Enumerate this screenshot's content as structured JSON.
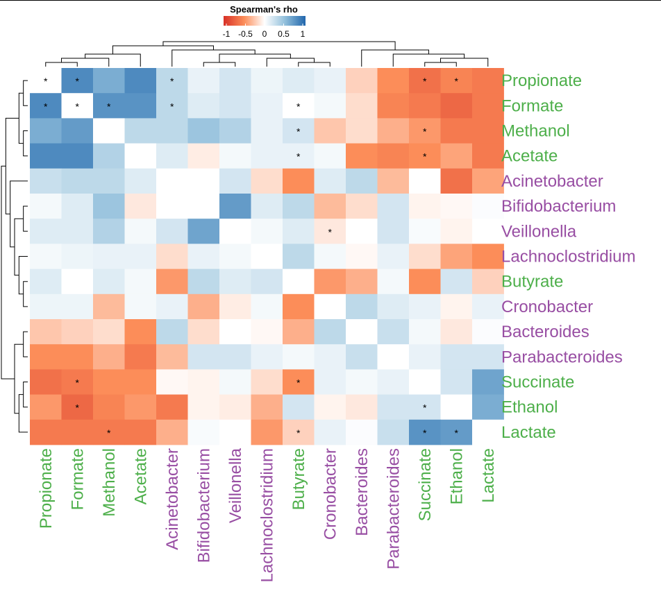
{
  "chart_data": {
    "type": "heatmap",
    "legend_title": "Spearman's rho",
    "legend_ticks": [
      "-1",
      "-0.5",
      "0",
      "0.5",
      "1"
    ],
    "color_scale": {
      "neg": "#d73027",
      "mid": "#ffffff",
      "pos": "#2166ac",
      "min": -1,
      "max": 1
    },
    "label_colors": {
      "metabolite": "#4daf4a",
      "bacterium": "#984ea3"
    },
    "rows": [
      {
        "name": "Propionate",
        "group": "metabolite"
      },
      {
        "name": "Formate",
        "group": "metabolite"
      },
      {
        "name": "Methanol",
        "group": "metabolite"
      },
      {
        "name": "Acetate",
        "group": "metabolite"
      },
      {
        "name": "Acinetobacter",
        "group": "bacterium"
      },
      {
        "name": "Bifidobacterium",
        "group": "bacterium"
      },
      {
        "name": "Veillonella",
        "group": "bacterium"
      },
      {
        "name": "Lachnoclostridium",
        "group": "bacterium"
      },
      {
        "name": "Butyrate",
        "group": "metabolite"
      },
      {
        "name": "Cronobacter",
        "group": "bacterium"
      },
      {
        "name": "Bacteroides",
        "group": "bacterium"
      },
      {
        "name": "Parabacteroides",
        "group": "bacterium"
      },
      {
        "name": "Succinate",
        "group": "metabolite"
      },
      {
        "name": "Ethanol",
        "group": "metabolite"
      },
      {
        "name": "Lactate",
        "group": "metabolite"
      }
    ],
    "columns": [
      {
        "name": "Propionate",
        "group": "metabolite"
      },
      {
        "name": "Formate",
        "group": "metabolite"
      },
      {
        "name": "Methanol",
        "group": "metabolite"
      },
      {
        "name": "Acetate",
        "group": "metabolite"
      },
      {
        "name": "Acinetobacter",
        "group": "bacterium"
      },
      {
        "name": "Bifidobacterium",
        "group": "bacterium"
      },
      {
        "name": "Veillonella",
        "group": "bacterium"
      },
      {
        "name": "Lachnoclostridium",
        "group": "bacterium"
      },
      {
        "name": "Butyrate",
        "group": "metabolite"
      },
      {
        "name": "Cronobacter",
        "group": "bacterium"
      },
      {
        "name": "Bacteroides",
        "group": "bacterium"
      },
      {
        "name": "Parabacteroides",
        "group": "bacterium"
      },
      {
        "name": "Succinate",
        "group": "metabolite"
      },
      {
        "name": "Ethanol",
        "group": "metabolite"
      },
      {
        "name": "Lactate",
        "group": "metabolite"
      }
    ],
    "values": [
      [
        0,
        0.8,
        0.6,
        0.8,
        0.3,
        0.1,
        0.2,
        0.08,
        0.15,
        0.1,
        -0.2,
        -0.5,
        -0.65,
        -0.55,
        -0.6
      ],
      [
        0.8,
        0,
        0.75,
        0.75,
        0.3,
        0.15,
        0.2,
        0.1,
        0,
        0.05,
        -0.15,
        -0.55,
        -0.6,
        -0.7,
        -0.6
      ],
      [
        0.6,
        0.7,
        0,
        0.3,
        0.3,
        0.45,
        0.35,
        0.1,
        0.2,
        -0.25,
        -0.15,
        -0.35,
        -0.45,
        -0.6,
        -0.6
      ],
      [
        0.8,
        0.8,
        0.35,
        0,
        0.15,
        -0.08,
        0.05,
        0.1,
        0.1,
        0.05,
        -0.5,
        -0.55,
        -0.5,
        -0.4,
        -0.6
      ],
      [
        0.25,
        0.3,
        0.3,
        0.15,
        0,
        0,
        0.2,
        -0.15,
        -0.5,
        0.15,
        0.3,
        -0.3,
        0,
        -0.65,
        -0.4
      ],
      [
        0.05,
        0.15,
        0.45,
        -0.1,
        0,
        0,
        0.7,
        0.15,
        0.3,
        -0.3,
        -0.15,
        0.2,
        -0.05,
        -0.03,
        0.02
      ],
      [
        0.15,
        0.15,
        0.35,
        0.05,
        0.2,
        0.65,
        0,
        0.05,
        0.15,
        -0.1,
        0,
        0.2,
        0.03,
        -0.05,
        0
      ],
      [
        0.05,
        0.08,
        0.1,
        0.1,
        -0.15,
        0.1,
        0.05,
        0,
        0.3,
        0.05,
        -0.03,
        0.1,
        -0.15,
        -0.4,
        -0.5
      ],
      [
        0.15,
        0,
        0.15,
        0.05,
        -0.45,
        0.3,
        0.15,
        0.2,
        0,
        -0.45,
        -0.35,
        0.05,
        -0.5,
        0.2,
        -0.2
      ],
      [
        0.08,
        0.08,
        -0.3,
        0.05,
        0.1,
        -0.35,
        -0.08,
        0.05,
        -0.5,
        0,
        0.3,
        0.15,
        0.1,
        -0.05,
        0.1
      ],
      [
        -0.25,
        -0.2,
        -0.15,
        -0.5,
        0.3,
        -0.15,
        0,
        -0.03,
        -0.35,
        0.3,
        0,
        0.25,
        0.05,
        -0.1,
        0.02
      ],
      [
        -0.5,
        -0.5,
        -0.35,
        -0.6,
        -0.3,
        0.2,
        0.2,
        0.1,
        0.05,
        0.1,
        0.25,
        0,
        0.1,
        0.2,
        0.2
      ],
      [
        -0.65,
        -0.6,
        -0.5,
        -0.5,
        -0.03,
        -0.05,
        0.05,
        -0.15,
        -0.5,
        0.1,
        0.05,
        0.1,
        0,
        0.2,
        0.65
      ],
      [
        -0.45,
        -0.7,
        -0.55,
        -0.45,
        -0.6,
        -0.05,
        -0.08,
        -0.35,
        0.2,
        -0.05,
        -0.1,
        0.2,
        0.2,
        0,
        0.6
      ],
      [
        -0.6,
        -0.6,
        -0.6,
        -0.6,
        -0.35,
        0.03,
        0,
        -0.45,
        -0.2,
        0.1,
        0.02,
        0.25,
        0.75,
        0.7,
        0
      ]
    ],
    "significance": [
      [
        0,
        0
      ],
      [
        0,
        1
      ],
      [
        0,
        4
      ],
      [
        0,
        12
      ],
      [
        0,
        13
      ],
      [
        1,
        0
      ],
      [
        1,
        1
      ],
      [
        1,
        2
      ],
      [
        1,
        4
      ],
      [
        1,
        8
      ],
      [
        2,
        8
      ],
      [
        2,
        12
      ],
      [
        3,
        8
      ],
      [
        3,
        12
      ],
      [
        6,
        9
      ],
      [
        12,
        1
      ],
      [
        12,
        8
      ],
      [
        13,
        1
      ],
      [
        13,
        12
      ],
      [
        14,
        2
      ],
      [
        14,
        8
      ],
      [
        14,
        12
      ],
      [
        14,
        13
      ]
    ],
    "significance_marker": "*",
    "column_dendrogram": "hierarchical clustering of columns",
    "row_dendrogram": "hierarchical clustering of rows"
  }
}
